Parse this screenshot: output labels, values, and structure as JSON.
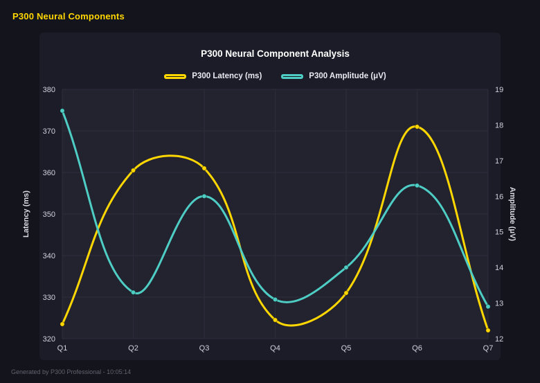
{
  "header": {
    "title": "P300 Neural Components"
  },
  "footer": {
    "text": "Generated by P300 Professional - 10:05:14"
  },
  "colors": {
    "background": "#14141D",
    "card_background": "#1C1C28",
    "plot_background": "#232330",
    "grid": "#2C2C3C",
    "title": "#FFFFFF",
    "tick": "#CFD2DC",
    "axis_title": "#D8DAE4",
    "footer_text": "#63636F",
    "accent_yellow": "#FFD700",
    "accent_teal": "#4ECDC4"
  },
  "chart_data": {
    "type": "line",
    "title": "P300 Neural Component Analysis",
    "categories": [
      "Q1",
      "Q2",
      "Q3",
      "Q4",
      "Q5",
      "Q6",
      "Q7"
    ],
    "series": [
      {
        "name": "P300 Latency (ms)",
        "axis": "left",
        "color": "#FFD700",
        "values": [
          323.5,
          360.5,
          361,
          324.5,
          331,
          371,
          322
        ]
      },
      {
        "name": "P300 Amplitude (μV)",
        "axis": "right",
        "color": "#4ECDC4",
        "values": [
          18.4,
          13.3,
          16.0,
          13.1,
          14.0,
          16.3,
          12.9
        ]
      }
    ],
    "left_axis": {
      "label": "Latency (ms)",
      "min": 320,
      "max": 380,
      "ticks": [
        320,
        330,
        340,
        350,
        360,
        370,
        380
      ]
    },
    "right_axis": {
      "label": "Amplitude (μV)",
      "min": 12,
      "max": 19,
      "ticks": [
        12,
        13,
        14,
        15,
        16,
        17,
        18,
        19
      ]
    },
    "grid": true,
    "legend_position": "top",
    "line_style": "smooth"
  }
}
